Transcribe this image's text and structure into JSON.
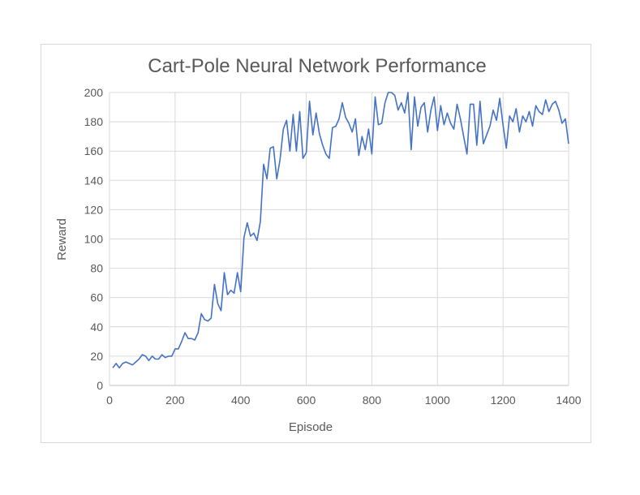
{
  "chart_data": {
    "type": "line",
    "title": "Cart-Pole Neural Network Performance",
    "xlabel": "Episode",
    "ylabel": "Reward",
    "xlim": [
      0,
      1400
    ],
    "ylim": [
      0,
      200
    ],
    "xticks": [
      0,
      200,
      400,
      600,
      800,
      1000,
      1200,
      1400
    ],
    "yticks": [
      0,
      20,
      40,
      60,
      80,
      100,
      120,
      140,
      160,
      180,
      200
    ],
    "grid": true,
    "legend": "none",
    "line_color": "#4472C4",
    "series": [
      {
        "x": [
          10,
          20,
          30,
          40,
          50,
          60,
          70,
          80,
          90,
          100,
          110,
          120,
          130,
          140,
          150,
          160,
          170,
          180,
          190,
          200,
          210,
          220,
          230,
          240,
          250,
          260,
          270,
          280,
          290,
          300,
          310,
          320,
          330,
          340,
          350,
          360,
          370,
          380,
          390,
          400,
          410,
          420,
          430,
          440,
          450,
          460,
          470,
          480,
          490,
          500,
          510,
          520,
          530,
          540,
          550,
          560,
          570,
          580,
          590,
          600,
          610,
          620,
          630,
          640,
          650,
          660,
          670,
          680,
          690,
          700,
          710,
          720,
          730,
          740,
          750,
          760,
          770,
          780,
          790,
          800,
          810,
          820,
          830,
          840,
          850,
          860,
          870,
          880,
          890,
          900,
          910,
          920,
          930,
          940,
          950,
          960,
          970,
          980,
          990,
          1000,
          1010,
          1020,
          1030,
          1040,
          1050,
          1060,
          1070,
          1080,
          1090,
          1100,
          1110,
          1120,
          1130,
          1140,
          1150,
          1160,
          1170,
          1180,
          1190,
          1200,
          1210,
          1220,
          1230,
          1240,
          1250,
          1260,
          1270,
          1280,
          1290,
          1300,
          1310,
          1320,
          1330,
          1340,
          1350,
          1360,
          1370,
          1380,
          1390,
          1400
        ],
        "values": [
          12,
          15,
          12,
          15,
          16,
          15,
          14,
          16,
          18,
          21,
          20,
          17,
          20,
          18,
          18,
          21,
          19,
          20,
          20,
          25,
          25,
          30,
          36,
          32,
          32,
          31,
          36,
          49,
          45,
          44,
          46,
          69,
          56,
          51,
          77,
          62,
          65,
          63,
          77,
          64,
          101,
          111,
          102,
          104,
          99,
          112,
          151,
          141,
          162,
          163,
          141,
          154,
          175,
          181,
          160,
          185,
          160,
          187,
          155,
          159,
          194,
          171,
          186,
          172,
          164,
          158,
          155,
          176,
          177,
          182,
          193,
          183,
          179,
          173,
          182,
          157,
          170,
          161,
          175,
          158,
          197,
          178,
          179,
          193,
          200,
          200,
          198,
          188,
          193,
          186,
          200,
          161,
          197,
          177,
          190,
          193,
          173,
          188,
          197,
          174,
          191,
          178,
          186,
          179,
          175,
          192,
          182,
          170,
          158,
          192,
          192,
          164,
          194,
          165,
          171,
          177,
          188,
          181,
          196,
          178,
          162,
          184,
          180,
          189,
          173,
          184,
          180,
          187,
          177,
          191,
          187,
          185,
          195,
          187,
          192,
          194,
          188,
          179,
          182,
          165
        ]
      }
    ]
  }
}
